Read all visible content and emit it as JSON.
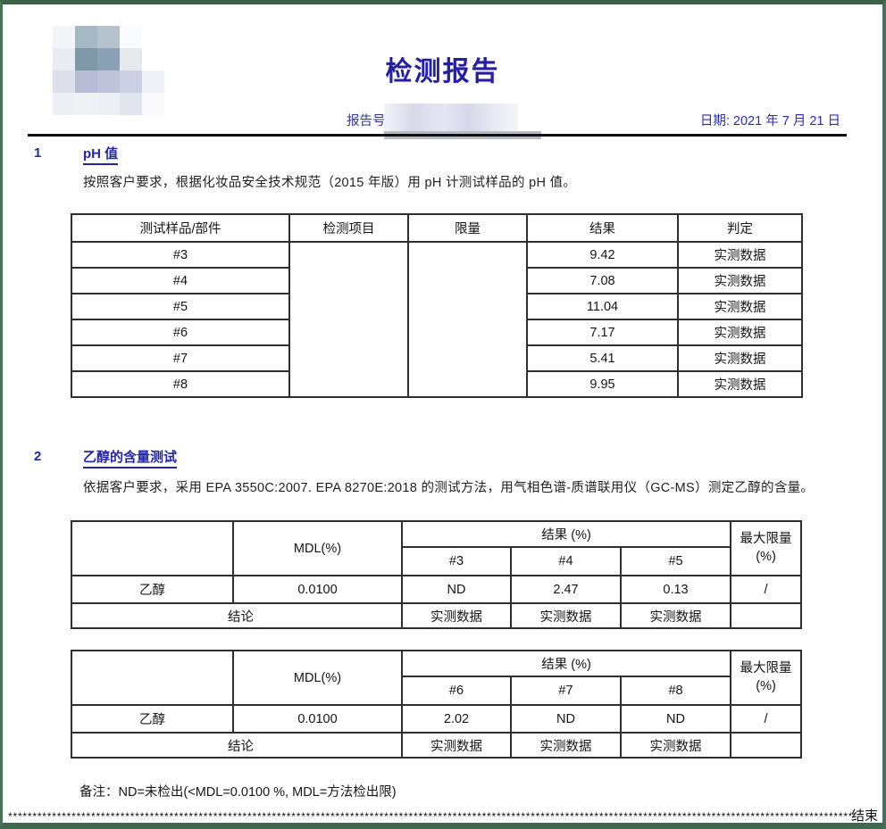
{
  "page": {
    "title": "检测报告",
    "report_no_label": "报告号",
    "date_label": "日期:",
    "date_value": "2021 年 7 月 21 日"
  },
  "logo_mosaic": [
    [
      "#f3f5f9",
      "#a5b8c4",
      "#b6c3ce",
      "#fafbfe",
      "#ffffff"
    ],
    [
      "#e9ebf1",
      "#7e98a8",
      "#8aa0b4",
      "#e7e9ef",
      "#ffffff"
    ],
    [
      "#dddfeb",
      "#b8bdd5",
      "#bfc3d9",
      "#cccee3",
      "#f0f1f8"
    ],
    [
      "#edeff5",
      "#f0f1f6",
      "#edeff4",
      "#e2e4ee",
      "#fafafc"
    ]
  ],
  "section1": {
    "number": "1",
    "heading": "pH 值",
    "description": "按照客户要求，根据化妆品安全技术规范（2015 年版）用 pH 计测试样品的 pH 值。",
    "table": {
      "headers": [
        "测试样品/部件",
        "检测项目",
        "限量",
        "结果",
        "判定"
      ],
      "rows": [
        {
          "sample": "#3",
          "result": "9.42",
          "judgement": "实测数据"
        },
        {
          "sample": "#4",
          "result": "7.08",
          "judgement": "实测数据"
        },
        {
          "sample": "#5",
          "result": "11.04",
          "judgement": "实测数据"
        },
        {
          "sample": "#6",
          "result": "7.17",
          "judgement": "实测数据"
        },
        {
          "sample": "#7",
          "result": "5.41",
          "judgement": "实测数据"
        },
        {
          "sample": "#8",
          "result": "9.95",
          "judgement": "实测数据"
        }
      ]
    }
  },
  "section2": {
    "number": "2",
    "heading": "乙醇的含量测试",
    "description": "依据客户要求，采用 EPA 3550C:2007. EPA 8270E:2018 的测试方法，用气相色谱-质谱联用仪（GC-MS）测定乙醇的含量。",
    "tables": [
      {
        "mdl_label": "MDL(%)",
        "result_label": "结果 (%)",
        "max_limit_line1": "最大限量",
        "max_limit_line2": "(%)",
        "sample_headers": [
          "#3",
          "#4",
          "#5"
        ],
        "analyte": "乙醇",
        "mdl": "0.0100",
        "results": [
          "ND",
          "2.47",
          "0.13"
        ],
        "max_limit": "/",
        "conclusion_label": "结论",
        "conclusion_values": [
          "实测数据",
          "实测数据",
          "实测数据"
        ]
      },
      {
        "mdl_label": "MDL(%)",
        "result_label": "结果 (%)",
        "max_limit_line1": "最大限量",
        "max_limit_line2": "(%)",
        "sample_headers": [
          "#6",
          "#7",
          "#8"
        ],
        "analyte": "乙醇",
        "mdl": "0.0100",
        "results": [
          "2.02",
          "ND",
          "ND"
        ],
        "max_limit": "/",
        "conclusion_label": "结论",
        "conclusion_values": [
          "实测数据",
          "实测数据",
          "实测数据"
        ]
      }
    ],
    "remark": "备注：ND=未检出(<MDL=0.0100 %, MDL=方法检出限)"
  },
  "footer": {
    "stars": "************************************************************************************************************************************************************************************************************************************",
    "end_label": "结束"
  }
}
